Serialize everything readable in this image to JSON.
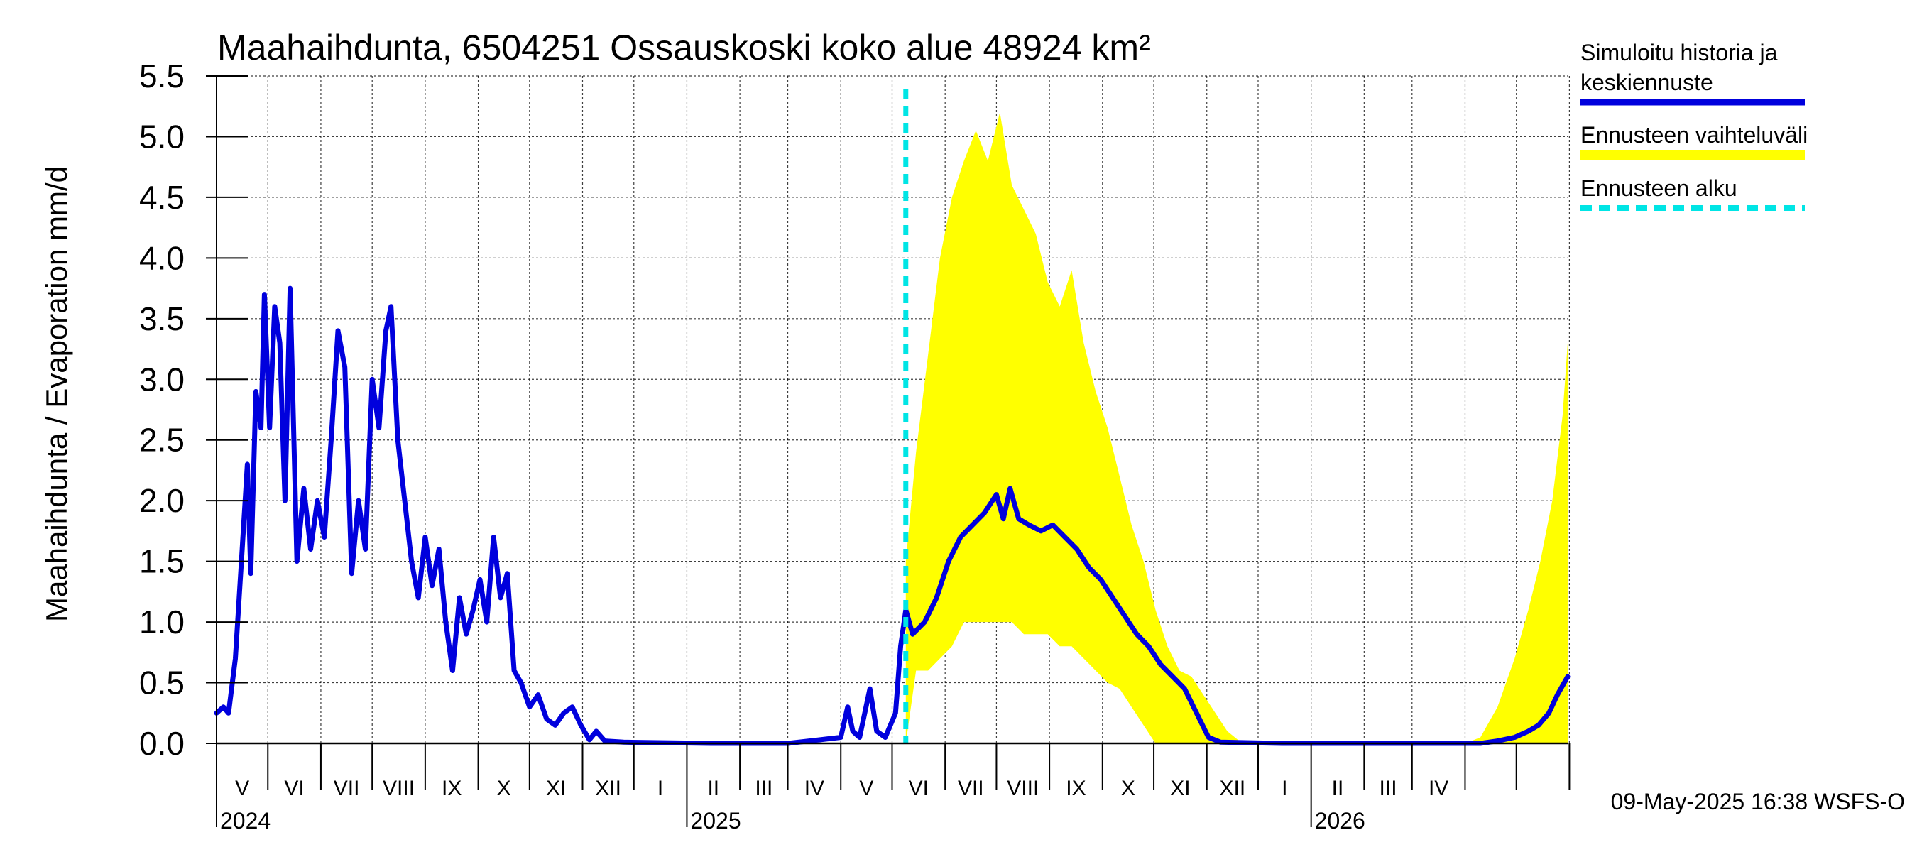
{
  "chart_data": {
    "type": "line",
    "title": "Maahaihdunta, 6504251 Ossauskoski koko alue 48924 km²",
    "ylabel": "Maahaihdunta / Evaporation   mm/d",
    "ylim": [
      0,
      5.5
    ],
    "yticks": [
      "0.0",
      "0.5",
      "1.0",
      "1.5",
      "2.0",
      "2.5",
      "3.0",
      "3.5",
      "4.0",
      "4.5",
      "5.0",
      "5.5"
    ],
    "grid": true,
    "x_range": [
      "2024-04-01",
      "2026-05-31"
    ],
    "month_labels": [
      "V",
      "VI",
      "VII",
      "VIII",
      "IX",
      "X",
      "XI",
      "XII",
      "I",
      "II",
      "III",
      "IV",
      "V",
      "VI",
      "VII",
      "VIII",
      "IX",
      "X",
      "XI",
      "XII",
      "I",
      "II",
      "III",
      "IV"
    ],
    "year_labels": [
      "2024",
      "2025",
      "2026"
    ],
    "forecast_start": "2025-05-09",
    "legend_position": "right",
    "series": [
      {
        "name": "Simuloitu historia ja keskiennuste",
        "color": "#0000dd",
        "points": [
          [
            "2024-04-01",
            0.25
          ],
          [
            "2024-04-05",
            0.3
          ],
          [
            "2024-04-08",
            0.25
          ],
          [
            "2024-04-12",
            0.7
          ],
          [
            "2024-04-16",
            1.6
          ],
          [
            "2024-04-19",
            2.3
          ],
          [
            "2024-04-21",
            1.4
          ],
          [
            "2024-04-24",
            2.9
          ],
          [
            "2024-04-27",
            2.6
          ],
          [
            "2024-04-29",
            3.7
          ],
          [
            "2024-05-02",
            2.6
          ],
          [
            "2024-05-05",
            3.6
          ],
          [
            "2024-05-08",
            3.3
          ],
          [
            "2024-05-11",
            2.0
          ],
          [
            "2024-05-14",
            3.75
          ],
          [
            "2024-05-18",
            1.5
          ],
          [
            "2024-05-22",
            2.1
          ],
          [
            "2024-05-26",
            1.6
          ],
          [
            "2024-05-30",
            2.0
          ],
          [
            "2024-06-03",
            1.7
          ],
          [
            "2024-06-07",
            2.5
          ],
          [
            "2024-06-11",
            3.4
          ],
          [
            "2024-06-15",
            3.1
          ],
          [
            "2024-06-19",
            1.4
          ],
          [
            "2024-06-23",
            2.0
          ],
          [
            "2024-06-27",
            1.6
          ],
          [
            "2024-07-01",
            3.0
          ],
          [
            "2024-07-05",
            2.6
          ],
          [
            "2024-07-09",
            3.4
          ],
          [
            "2024-07-12",
            3.6
          ],
          [
            "2024-07-16",
            2.5
          ],
          [
            "2024-07-20",
            2.0
          ],
          [
            "2024-07-24",
            1.5
          ],
          [
            "2024-07-28",
            1.2
          ],
          [
            "2024-08-01",
            1.7
          ],
          [
            "2024-08-05",
            1.3
          ],
          [
            "2024-08-09",
            1.6
          ],
          [
            "2024-08-13",
            1.0
          ],
          [
            "2024-08-17",
            0.6
          ],
          [
            "2024-08-21",
            1.2
          ],
          [
            "2024-08-25",
            0.9
          ],
          [
            "2024-08-29",
            1.1
          ],
          [
            "2024-09-02",
            1.35
          ],
          [
            "2024-09-06",
            1.0
          ],
          [
            "2024-09-10",
            1.7
          ],
          [
            "2024-09-14",
            1.2
          ],
          [
            "2024-09-18",
            1.4
          ],
          [
            "2024-09-22",
            0.6
          ],
          [
            "2024-09-26",
            0.5
          ],
          [
            "2024-10-01",
            0.3
          ],
          [
            "2024-10-06",
            0.4
          ],
          [
            "2024-10-11",
            0.2
          ],
          [
            "2024-10-16",
            0.15
          ],
          [
            "2024-10-21",
            0.25
          ],
          [
            "2024-10-26",
            0.3
          ],
          [
            "2024-10-31",
            0.15
          ],
          [
            "2024-11-05",
            0.03
          ],
          [
            "2024-11-09",
            0.1
          ],
          [
            "2024-11-14",
            0.02
          ],
          [
            "2024-11-25",
            0.01
          ],
          [
            "2025-01-15",
            0.0
          ],
          [
            "2025-03-01",
            0.0
          ],
          [
            "2025-03-20",
            0.03
          ],
          [
            "2025-04-01",
            0.05
          ],
          [
            "2025-04-05",
            0.3
          ],
          [
            "2025-04-08",
            0.1
          ],
          [
            "2025-04-12",
            0.05
          ],
          [
            "2025-04-18",
            0.45
          ],
          [
            "2025-04-22",
            0.1
          ],
          [
            "2025-04-27",
            0.05
          ],
          [
            "2025-05-03",
            0.25
          ],
          [
            "2025-05-06",
            0.8
          ],
          [
            "2025-05-09",
            1.1
          ],
          [
            "2025-05-13",
            0.9
          ],
          [
            "2025-05-20",
            1.0
          ],
          [
            "2025-05-27",
            1.2
          ],
          [
            "2025-06-03",
            1.5
          ],
          [
            "2025-06-10",
            1.7
          ],
          [
            "2025-06-17",
            1.8
          ],
          [
            "2025-06-24",
            1.9
          ],
          [
            "2025-07-01",
            2.05
          ],
          [
            "2025-07-05",
            1.85
          ],
          [
            "2025-07-09",
            2.1
          ],
          [
            "2025-07-14",
            1.85
          ],
          [
            "2025-07-20",
            1.8
          ],
          [
            "2025-07-27",
            1.75
          ],
          [
            "2025-08-03",
            1.8
          ],
          [
            "2025-08-10",
            1.7
          ],
          [
            "2025-08-17",
            1.6
          ],
          [
            "2025-08-24",
            1.45
          ],
          [
            "2025-08-31",
            1.35
          ],
          [
            "2025-09-07",
            1.2
          ],
          [
            "2025-09-14",
            1.05
          ],
          [
            "2025-09-21",
            0.9
          ],
          [
            "2025-09-28",
            0.8
          ],
          [
            "2025-10-05",
            0.65
          ],
          [
            "2025-10-12",
            0.55
          ],
          [
            "2025-10-19",
            0.45
          ],
          [
            "2025-10-26",
            0.25
          ],
          [
            "2025-11-02",
            0.05
          ],
          [
            "2025-11-09",
            0.01
          ],
          [
            "2025-12-15",
            0.0
          ],
          [
            "2026-03-15",
            0.0
          ],
          [
            "2026-04-10",
            0.0
          ],
          [
            "2026-04-20",
            0.02
          ],
          [
            "2026-04-30",
            0.05
          ],
          [
            "2026-05-08",
            0.1
          ],
          [
            "2026-05-14",
            0.15
          ],
          [
            "2026-05-20",
            0.25
          ],
          [
            "2026-05-25",
            0.4
          ],
          [
            "2026-05-31",
            0.55
          ]
        ]
      },
      {
        "name": "Ennusteen vaihteluväli",
        "color": "#ffff00",
        "band": [
          [
            "2025-05-09",
            0.0,
            1.5
          ],
          [
            "2025-05-15",
            0.6,
            2.4
          ],
          [
            "2025-05-22",
            0.6,
            3.2
          ],
          [
            "2025-05-29",
            0.7,
            4.0
          ],
          [
            "2025-06-05",
            0.8,
            4.5
          ],
          [
            "2025-06-12",
            1.0,
            4.8
          ],
          [
            "2025-06-19",
            1.0,
            5.05
          ],
          [
            "2025-06-26",
            1.0,
            4.8
          ],
          [
            "2025-07-03",
            1.0,
            5.2
          ],
          [
            "2025-07-10",
            1.0,
            4.6
          ],
          [
            "2025-07-17",
            0.9,
            4.4
          ],
          [
            "2025-07-24",
            0.9,
            4.2
          ],
          [
            "2025-07-31",
            0.9,
            3.8
          ],
          [
            "2025-08-07",
            0.8,
            3.6
          ],
          [
            "2025-08-14",
            0.8,
            3.9
          ],
          [
            "2025-08-21",
            0.7,
            3.3
          ],
          [
            "2025-08-28",
            0.6,
            2.9
          ],
          [
            "2025-09-04",
            0.5,
            2.6
          ],
          [
            "2025-09-11",
            0.45,
            2.2
          ],
          [
            "2025-09-18",
            0.3,
            1.8
          ],
          [
            "2025-09-25",
            0.15,
            1.5
          ],
          [
            "2025-10-02",
            0.0,
            1.1
          ],
          [
            "2025-10-09",
            0.0,
            0.8
          ],
          [
            "2025-10-16",
            0.0,
            0.6
          ],
          [
            "2025-10-23",
            0.0,
            0.55
          ],
          [
            "2025-10-30",
            0.0,
            0.4
          ],
          [
            "2025-11-06",
            0.0,
            0.25
          ],
          [
            "2025-11-13",
            0.0,
            0.1
          ],
          [
            "2025-11-20",
            0.0,
            0.02
          ],
          [
            "2026-04-01",
            0.0,
            0.0
          ],
          [
            "2026-04-10",
            0.0,
            0.05
          ],
          [
            "2026-04-20",
            0.0,
            0.3
          ],
          [
            "2026-04-30",
            0.0,
            0.7
          ],
          [
            "2026-05-08",
            0.0,
            1.1
          ],
          [
            "2026-05-15",
            0.0,
            1.5
          ],
          [
            "2026-05-22",
            0.0,
            2.0
          ],
          [
            "2026-05-28",
            0.0,
            2.7
          ],
          [
            "2026-05-31",
            0.0,
            3.3
          ]
        ]
      },
      {
        "name": "Ennusteen alku",
        "color": "#00e5e5",
        "style": "dashed"
      }
    ]
  },
  "legend": [
    {
      "label_line1": "Simuloitu historia ja",
      "label_line2": "keskiennuste",
      "color": "#0000dd",
      "style": "solid"
    },
    {
      "label_line1": "Ennusteen vaihteluväli",
      "label_line2": "",
      "color": "#ffff00",
      "style": "solid"
    },
    {
      "label_line1": "Ennusteen alku",
      "label_line2": "",
      "color": "#00e5e5",
      "style": "dashed"
    }
  ],
  "footer_text": "09-May-2025 16:38 WSFS-O"
}
